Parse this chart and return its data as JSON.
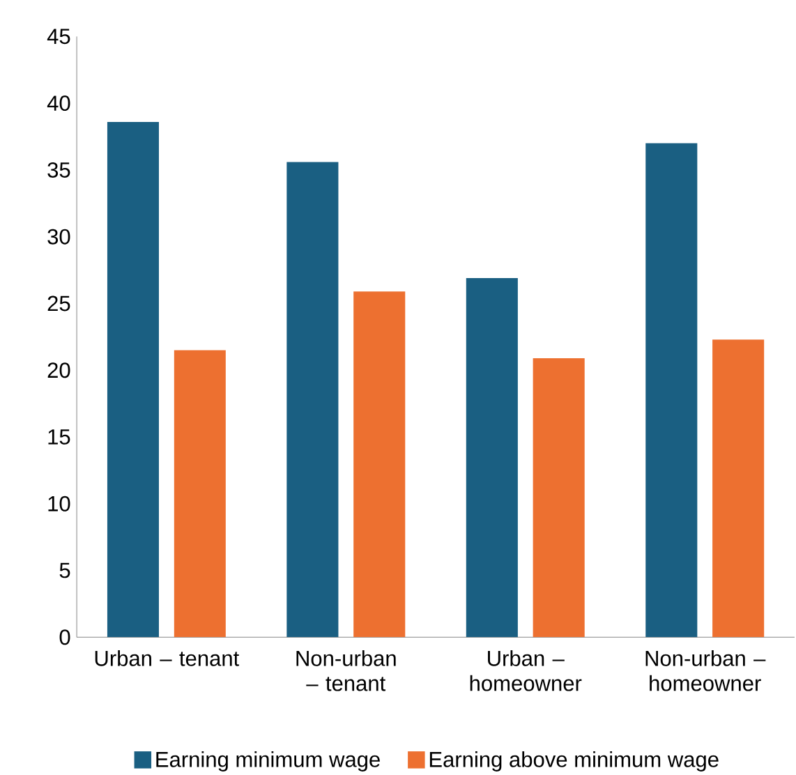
{
  "chart_data": {
    "type": "bar",
    "categories": [
      "Urban – tenant",
      "Non-urban – tenant",
      "Urban – homeowner",
      "Non-urban – homeowner"
    ],
    "series": [
      {
        "name": "Earning minimum wage",
        "color": "#1a5f82",
        "values": [
          38.6,
          35.6,
          26.9,
          37.0
        ]
      },
      {
        "name": "Earning above minimum wage",
        "color": "#ed7030",
        "values": [
          21.5,
          25.9,
          20.9,
          22.3
        ]
      }
    ],
    "ylim": [
      0,
      45
    ],
    "yticks": [
      0,
      5,
      10,
      15,
      20,
      25,
      30,
      35,
      40,
      45
    ],
    "grid": false,
    "legend": "bottom"
  }
}
